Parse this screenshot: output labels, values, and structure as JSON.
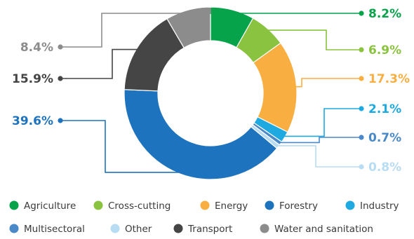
{
  "chart_data": {
    "type": "donut",
    "title": "",
    "values_unit": "%",
    "slices": [
      {
        "label": "Agriculture",
        "value": 8.2,
        "display": "8.2%",
        "color": "#07a34b"
      },
      {
        "label": "Cross-cutting",
        "value": 6.9,
        "display": "6.9%",
        "color": "#8ac33f"
      },
      {
        "label": "Energy",
        "value": 17.3,
        "display": "17.3%",
        "color": "#f9ae41"
      },
      {
        "label": "Industry",
        "value": 2.1,
        "display": "2.1%",
        "color": "#1fa9e1"
      },
      {
        "label": "Multisectoral",
        "value": 0.7,
        "display": "0.7%",
        "color": "#4a89c8"
      },
      {
        "label": "Other",
        "value": 0.8,
        "display": "0.8%",
        "color": "#b8dcf2"
      },
      {
        "label": "Forestry",
        "value": 39.6,
        "display": "39.6%",
        "color": "#1e73be"
      },
      {
        "label": "Transport",
        "value": 15.9,
        "display": "15.9%",
        "color": "#454545"
      },
      {
        "label": "Water and sanitation",
        "value": 8.4,
        "display": "8.4%",
        "color": "#8c8c8c"
      }
    ],
    "legend": {
      "placement": "bottom",
      "rows": [
        [
          "Agriculture",
          "Cross-cutting",
          "Energy",
          "Forestry",
          "Industry"
        ],
        [
          "Multisectoral",
          "Other",
          "Transport",
          "Water and sanitation"
        ]
      ]
    }
  }
}
